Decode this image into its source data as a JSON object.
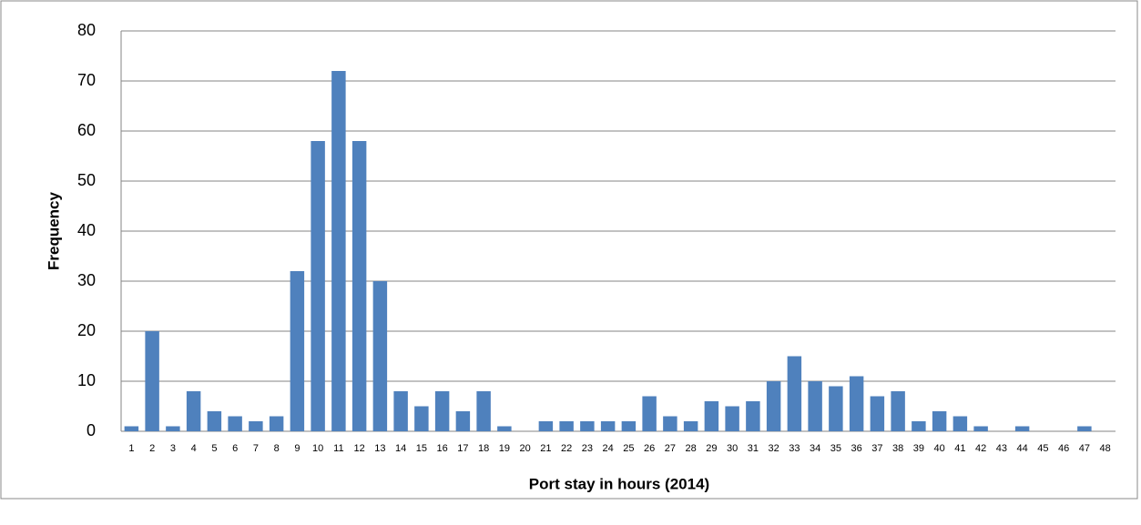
{
  "chart_data": {
    "type": "bar",
    "x_label": "Port stay in hours (2014)",
    "y_label": "Frequency",
    "categories": [
      "1",
      "2",
      "3",
      "4",
      "5",
      "6",
      "7",
      "8",
      "9",
      "10",
      "11",
      "12",
      "13",
      "14",
      "15",
      "16",
      "17",
      "18",
      "19",
      "20",
      "21",
      "22",
      "23",
      "24",
      "25",
      "26",
      "27",
      "28",
      "29",
      "30",
      "31",
      "32",
      "33",
      "34",
      "35",
      "36",
      "37",
      "38",
      "39",
      "40",
      "41",
      "42",
      "43",
      "44",
      "45",
      "46",
      "47",
      "48"
    ],
    "values": [
      1,
      20,
      1,
      8,
      4,
      3,
      2,
      3,
      32,
      58,
      72,
      58,
      30,
      8,
      5,
      8,
      4,
      8,
      1,
      0,
      2,
      2,
      2,
      2,
      2,
      7,
      3,
      2,
      6,
      5,
      6,
      10,
      15,
      10,
      9,
      11,
      7,
      8,
      2,
      4,
      3,
      1,
      0,
      1,
      0,
      0,
      1,
      0
    ],
    "color": "#4f81bd",
    "ylim": [
      0,
      80
    ],
    "yticks": [
      0,
      10,
      20,
      30,
      40,
      50,
      60,
      70,
      80
    ],
    "grid": true
  }
}
